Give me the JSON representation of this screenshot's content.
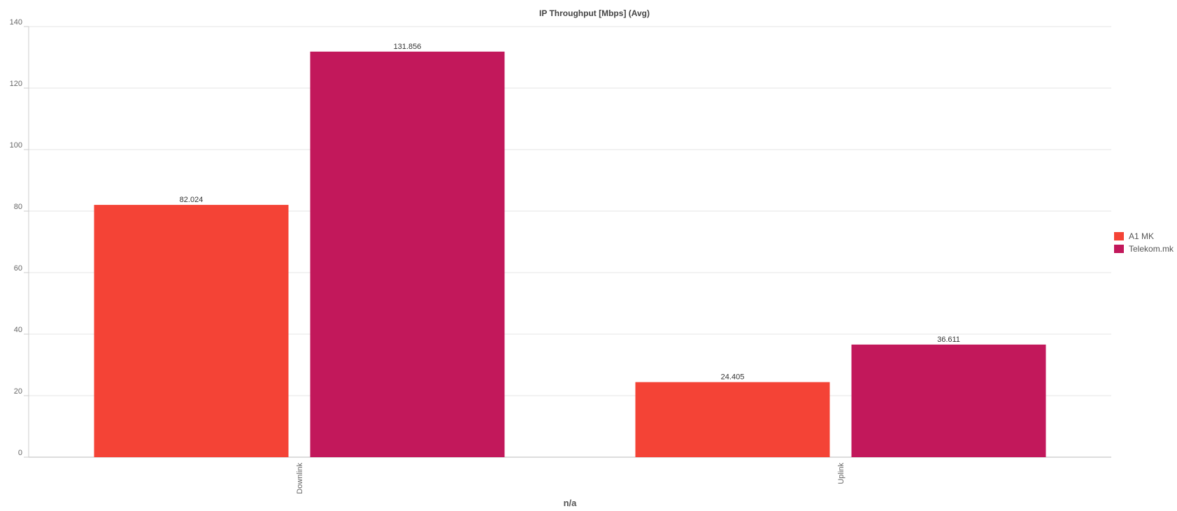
{
  "chart_data": {
    "type": "bar",
    "title": "IP Throughput [Mbps] (Avg)",
    "xlabel": "n/a",
    "ylabel": "",
    "ylim": [
      0,
      140
    ],
    "yticks": [
      0,
      20,
      40,
      60,
      80,
      100,
      120,
      140
    ],
    "categories": [
      "Downlink",
      "Uplink"
    ],
    "series": [
      {
        "name": "A1 MK",
        "color": "#f44336",
        "values": [
          82.024,
          24.405
        ],
        "labels": [
          "82.024",
          "24.405"
        ]
      },
      {
        "name": "Telekom.mk",
        "color": "#c2185b",
        "values": [
          131.856,
          36.611
        ],
        "labels": [
          "131.856",
          "36.611"
        ]
      }
    ],
    "grid": true,
    "legend_position": "right"
  }
}
